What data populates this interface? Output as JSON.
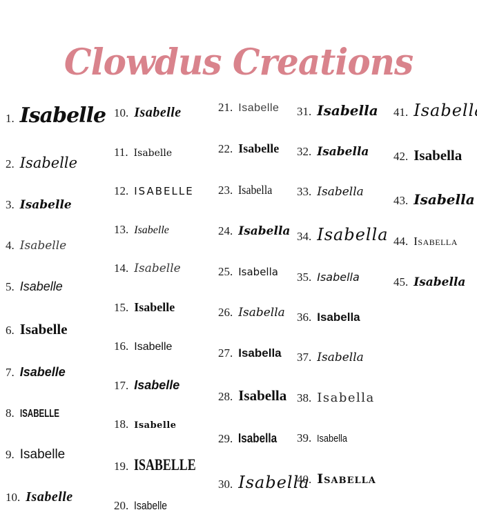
{
  "title": {
    "text": "Clowdus Creations",
    "color": "#d9838c"
  },
  "name_variants": [
    "Isabelle",
    "Isabella"
  ],
  "columns": [
    {
      "items": [
        {
          "number": "1.",
          "name": "Isabelle",
          "style": "f-brush-lg"
        },
        {
          "number": "2.",
          "name": "Isabelle",
          "style": "f-script"
        },
        {
          "number": "3.",
          "name": "Isabelle",
          "style": "f-script-bold-sm"
        },
        {
          "number": "4.",
          "name": "Isabelle",
          "style": "f-script-thin"
        },
        {
          "number": "5.",
          "name": "Isabelle",
          "style": "f-sans-italic"
        },
        {
          "number": "6.",
          "name": "Isabelle",
          "style": "f-serif-bold-lg"
        },
        {
          "number": "7.",
          "name": "Isabelle",
          "style": "f-sans-bold-italic"
        },
        {
          "number": "8.",
          "name": "ISABELLE",
          "style": "f-caps-cond"
        },
        {
          "number": "9.",
          "name": "Isabelle",
          "style": "f-sans-lg"
        },
        {
          "number": "10.",
          "name": "Isabelle",
          "style": "f-serif-bold-italic"
        }
      ]
    },
    {
      "items": [
        {
          "number": "10.",
          "name": "Isabelle",
          "style": "f-serif-bold-italic"
        },
        {
          "number": "11.",
          "name": "Isabelle",
          "style": "f-tiny-serif"
        },
        {
          "number": "12.",
          "name": "ISABELLE",
          "style": "f-caps-spaced"
        },
        {
          "number": "13.",
          "name": "Isabelle",
          "style": "f-serif-italic"
        },
        {
          "number": "14.",
          "name": "Isabelle",
          "style": "f-script-thin"
        },
        {
          "number": "15.",
          "name": "Isabelle",
          "style": "f-serif-bold"
        },
        {
          "number": "16.",
          "name": "Isabelle",
          "style": "f-sans"
        },
        {
          "number": "17.",
          "name": "Isabelle",
          "style": "f-sans-bold-italic"
        },
        {
          "number": "18.",
          "name": "Isabelle",
          "style": "f-tiny-serif-bold"
        },
        {
          "number": "19.",
          "name": "ISABELLE",
          "style": "f-caps-tall"
        },
        {
          "number": "20.",
          "name": "Isabelle",
          "style": "f-cond-sans"
        }
      ]
    },
    {
      "items": [
        {
          "number": "21.",
          "name": "Isabelle",
          "style": "f-sans-light"
        },
        {
          "number": "22.",
          "name": "Isabelle",
          "style": "f-serif-bold"
        },
        {
          "number": "23.",
          "name": "Isabella",
          "style": "f-serif-cond"
        },
        {
          "number": "24.",
          "name": "Isabella",
          "style": "f-script-bold-sm"
        },
        {
          "number": "25.",
          "name": "Isabella",
          "style": "f-sans-casual"
        },
        {
          "number": "26.",
          "name": "Isabella",
          "style": "f-script-sm"
        },
        {
          "number": "27.",
          "name": "Isabella",
          "style": "f-sans-bold"
        },
        {
          "number": "28.",
          "name": "Isabella",
          "style": "f-serif-bold-lg"
        },
        {
          "number": "29.",
          "name": "Isabella",
          "style": "f-sans-bold-cond"
        },
        {
          "number": "30.",
          "name": "Isabella",
          "style": "f-elegant-lg"
        }
      ]
    },
    {
      "items": [
        {
          "number": "31.",
          "name": "Isabella",
          "style": "f-script-bold"
        },
        {
          "number": "32.",
          "name": "Isabella",
          "style": "f-script-bold-sm"
        },
        {
          "number": "33.",
          "name": "Isabella",
          "style": "f-script-sm"
        },
        {
          "number": "34.",
          "name": "Isabella",
          "style": "f-elegant-lg"
        },
        {
          "number": "35.",
          "name": "Isabella",
          "style": "f-hand"
        },
        {
          "number": "36.",
          "name": "Isabella",
          "style": "f-sans-bold"
        },
        {
          "number": "37.",
          "name": "Isabella",
          "style": "f-script-sm"
        },
        {
          "number": "38.",
          "name": "Isabella",
          "style": "f-thin-display"
        },
        {
          "number": "39.",
          "name": "Isabella",
          "style": "f-cond-sans-sm"
        },
        {
          "number": "40.",
          "name": "Isabella",
          "style": "f-slab-caps"
        }
      ]
    },
    {
      "items": [
        {
          "number": "41.",
          "name": "Isabella",
          "style": "f-elegant-lg"
        },
        {
          "number": "42.",
          "name": "Isabella",
          "style": "f-serif-bold-lg"
        },
        {
          "number": "43.",
          "name": "Isabella",
          "style": "f-script-bold"
        },
        {
          "number": "44.",
          "name": "Isabella",
          "style": "f-smallcaps"
        },
        {
          "number": "45.",
          "name": "Isabella",
          "style": "f-script-bold-sm"
        }
      ]
    }
  ]
}
